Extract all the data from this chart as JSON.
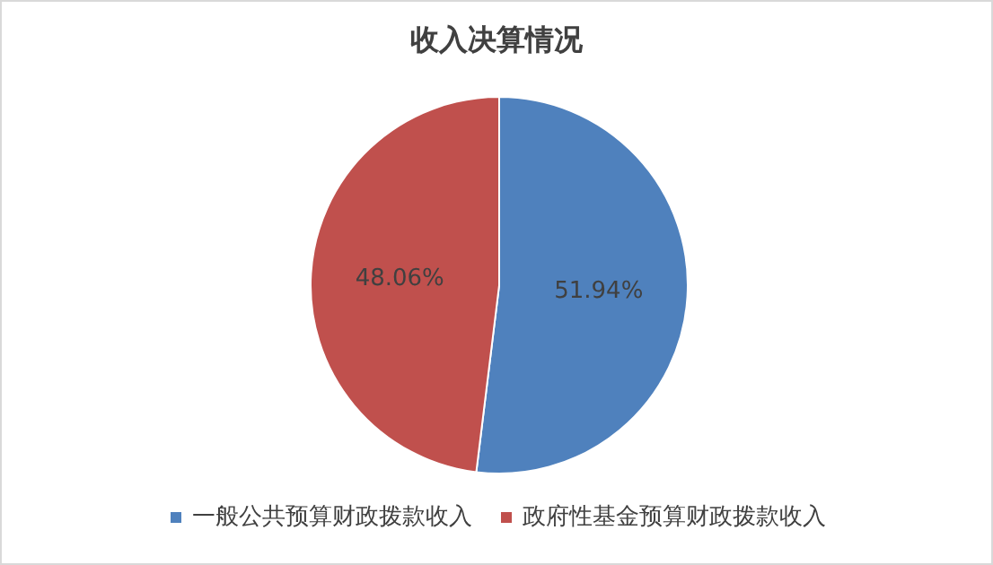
{
  "chart_data": {
    "type": "pie",
    "title": "收入决算情况",
    "categories": [
      "一般公共预算财政拨款收入",
      "政府性基金预算财政拨款收入"
    ],
    "values": [
      51.94,
      48.06
    ],
    "colors": [
      "#4f81bd",
      "#c0504d"
    ],
    "value_labels": [
      "51.94%",
      "48.06%"
    ],
    "legend": "bottom"
  }
}
